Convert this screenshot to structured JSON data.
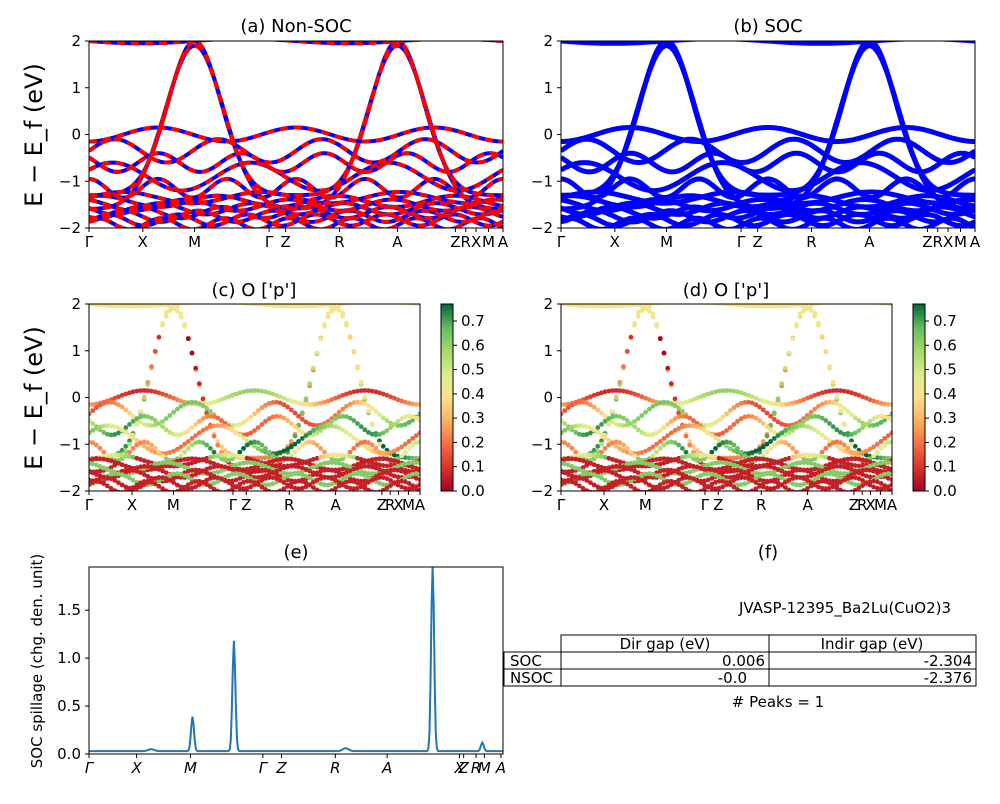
{
  "panels": {
    "a": {
      "title": "(a) Non-SOC"
    },
    "b": {
      "title": "(b) SOC"
    },
    "c": {
      "title": "(c)  O ['p']"
    },
    "d": {
      "title": "(d) O ['p']"
    },
    "e": {
      "title": "(e)"
    },
    "f": {
      "title": "(f)"
    }
  },
  "band_axes": {
    "ylabel": "E − E_f (eV)",
    "ylim": [
      -2,
      2
    ],
    "yticks": [
      "2",
      "1",
      "0",
      "−1",
      "−2"
    ],
    "kpath": [
      "Γ",
      "X",
      "M",
      "Γ",
      "Z",
      "R",
      "A",
      "Z",
      "R",
      "X",
      "M",
      "A"
    ],
    "kpath_upper": [
      "Γ",
      "X",
      "M",
      "Γ",
      "Z",
      "R",
      "A",
      "Z",
      "|",
      "X",
      "|",
      "M",
      "A"
    ]
  },
  "colorbar": {
    "ticks": [
      "0.7",
      "0.6",
      "0.5",
      "0.4",
      "0.3",
      "0.2",
      "0.1",
      "0.0"
    ],
    "colormap": "RdYlGn"
  },
  "colors": {
    "nonsoc": "#0000ff",
    "soc_dash": "#ff0000",
    "spillage": "#1f77b4"
  },
  "spillage": {
    "ylabel": "SOC spillage (chg. den. unit)",
    "yticks": [
      "1.5",
      "1.0",
      "0.5",
      "0.0"
    ],
    "xticks": [
      "Γ",
      "X",
      "M",
      "Γ",
      "Z",
      "R",
      "A",
      "X",
      "Z",
      "R",
      "M",
      "A"
    ]
  },
  "chart_data": [
    {
      "type": "line",
      "title": "(a) Non-SOC",
      "ylim": [
        -2,
        2
      ],
      "series": [
        {
          "name": "Non-SOC",
          "color": "#0000ff"
        },
        {
          "name": "SOC",
          "color": "#ff0000",
          "style": "dashed"
        }
      ]
    },
    {
      "type": "line",
      "title": "(b) SOC",
      "ylim": [
        -2,
        2
      ]
    },
    {
      "type": "scatter",
      "title": "(c)  O ['p']",
      "ylim": [
        -2,
        2
      ],
      "colorbar": [
        0,
        0.75
      ]
    },
    {
      "type": "scatter",
      "title": "(d) O ['p']",
      "ylim": [
        -2,
        2
      ],
      "colorbar": [
        0,
        0.75
      ]
    },
    {
      "type": "line",
      "title": "(e)",
      "ylabel": "SOC spillage (chg. den. unit)",
      "ylim": [
        0,
        1.95
      ],
      "x": [
        0,
        0.1,
        0.2,
        0.25,
        0.3,
        0.35,
        0.4,
        0.45,
        0.55,
        0.6,
        0.7,
        0.82,
        0.9,
        1.0
      ],
      "peaks": [
        {
          "x": 0.25,
          "y": 0.36
        },
        {
          "x": 0.35,
          "y": 1.15
        },
        {
          "x": 0.83,
          "y": 1.95
        },
        {
          "x": 0.95,
          "y": 0.09
        }
      ]
    },
    {
      "type": "table",
      "title": "(f)",
      "caption": "JVASP-12395_Ba2Lu(CuO2)3",
      "columns": [
        "",
        "Dir gap (eV)",
        "Indir gap (eV)"
      ],
      "rows": [
        [
          "SOC",
          "0.006",
          "-2.304"
        ],
        [
          "NSOC",
          "-0.0",
          "-2.376"
        ]
      ],
      "footer": "# Peaks = 1"
    }
  ]
}
